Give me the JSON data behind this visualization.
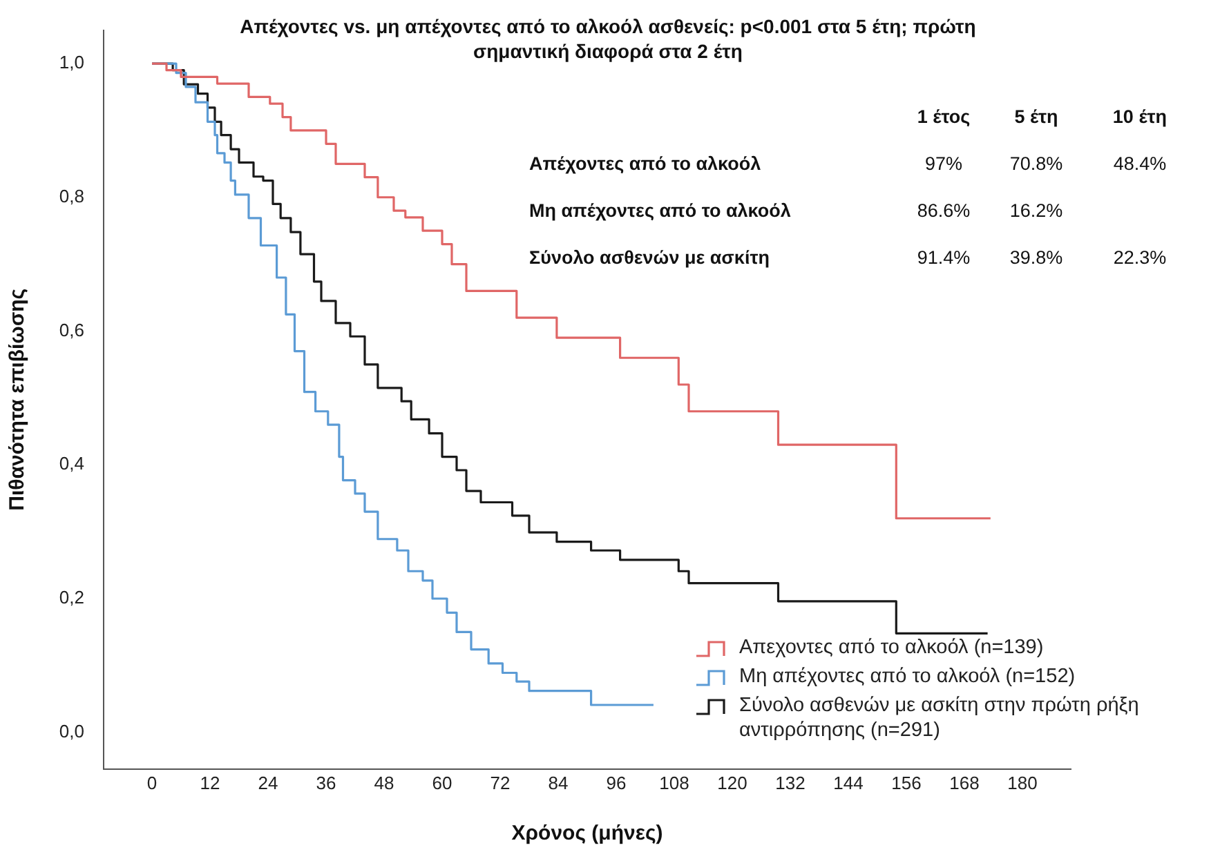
{
  "chart_data": {
    "type": "step",
    "title": "Απέχοντες vs. μη απέχοντες από το αλκοόλ ασθενείς: p<0.001 στα 5 έτη; πρώτη σημαντική διαφορά στα 2 έτη",
    "xlabel": "Χρόνος (μήνες)",
    "ylabel": "Πιθανότητα επιβίωσης",
    "xlim": [
      -10,
      190
    ],
    "xticks": [
      0,
      12,
      24,
      36,
      48,
      60,
      72,
      84,
      96,
      108,
      120,
      132,
      144,
      156,
      168,
      180
    ],
    "ylim": [
      -0.055,
      1.05
    ],
    "yticks": [
      {
        "value": 0,
        "label": "0,0"
      },
      {
        "value": 0.2,
        "label": "0,2"
      },
      {
        "value": 0.4,
        "label": "0,4"
      },
      {
        "value": 0.6,
        "label": "0,6"
      },
      {
        "value": 0.8,
        "label": "0,8"
      },
      {
        "value": 1,
        "label": "1,0"
      }
    ],
    "grid": false,
    "legend": "bottom right",
    "marker": "none",
    "line_style": "solid",
    "annotations": [
      null,
      "1 έτος",
      "5 έτη",
      "10 έτη",
      "Απέχοντες από το αλκοόλ",
      "97%",
      "70.8%",
      "48.4%",
      "Μη απέχοντες από το αλκοόλ",
      "86.6%",
      "16.2%",
      null,
      "Σύνολο ασθενών με ασκίτη",
      "91.4%",
      "39.8%",
      "22.3%"
    ],
    "series": [
      {
        "name": "Απεχοντες από το αλκοόλ (n=139)",
        "color": "#e06666",
        "x": [
          0,
          3,
          6,
          13.5,
          20,
          24.4,
          27,
          28.7,
          36,
          38,
          44,
          46.7,
          50,
          52.4,
          56,
          60,
          62,
          65,
          75.4,
          83.7,
          96.8,
          108.9,
          111,
          129.5,
          153.9,
          173.4
        ],
        "values": [
          1,
          0.99,
          0.98,
          0.97,
          0.95,
          0.94,
          0.92,
          0.9,
          0.88,
          0.85,
          0.83,
          0.8,
          0.78,
          0.77,
          0.75,
          0.73,
          0.7,
          0.66,
          0.62,
          0.59,
          0.56,
          0.52,
          0.48,
          0.43,
          0.32,
          0.32
        ]
      },
      {
        "name": "Μη απέχοντες από το αλκοόλ (n=152)",
        "color": "#5b9bd5",
        "x": [
          0,
          5,
          7,
          9,
          11.5,
          13,
          13.5,
          15,
          16.3,
          17.2,
          20,
          22.5,
          25.8,
          27.7,
          29.5,
          31.5,
          33.8,
          36.4,
          38.7,
          39.5,
          42,
          44,
          46.7,
          50.7,
          53,
          56,
          58,
          61,
          63,
          66,
          69.6,
          72.5,
          75.4,
          78,
          90.8,
          103.7
        ],
        "values": [
          1,
          0.986,
          0.965,
          0.942,
          0.913,
          0.893,
          0.866,
          0.852,
          0.825,
          0.804,
          0.769,
          0.728,
          0.68,
          0.625,
          0.57,
          0.509,
          0.48,
          0.46,
          0.412,
          0.377,
          0.357,
          0.33,
          0.289,
          0.272,
          0.241,
          0.227,
          0.2,
          0.179,
          0.15,
          0.124,
          0.103,
          0.089,
          0.076,
          0.062,
          0.041,
          0.041
        ]
      },
      {
        "name": "Σύνολο ασθενών με ασκίτη στην πρώτη ρήξη αντιρρόπησης (n=291)",
        "color": "#1a1a1a",
        "x": [
          0,
          4.3,
          6.6,
          9.5,
          11.5,
          13,
          14.3,
          16.3,
          18,
          21,
          23,
          25,
          26.6,
          28.7,
          30.7,
          33.5,
          35,
          38,
          41,
          44,
          46.7,
          51.6,
          53.6,
          57.3,
          60,
          63,
          65,
          68,
          74.5,
          78,
          83.7,
          90.8,
          96.8,
          108.9,
          111,
          129.5,
          153.9,
          172.8
        ],
        "values": [
          1,
          0.99,
          0.969,
          0.955,
          0.934,
          0.913,
          0.893,
          0.872,
          0.852,
          0.831,
          0.825,
          0.79,
          0.769,
          0.748,
          0.715,
          0.674,
          0.645,
          0.612,
          0.592,
          0.55,
          0.515,
          0.495,
          0.468,
          0.447,
          0.412,
          0.392,
          0.361,
          0.344,
          0.324,
          0.299,
          0.285,
          0.272,
          0.258,
          0.241,
          0.223,
          0.196,
          0.148,
          0.148
        ]
      }
    ]
  }
}
